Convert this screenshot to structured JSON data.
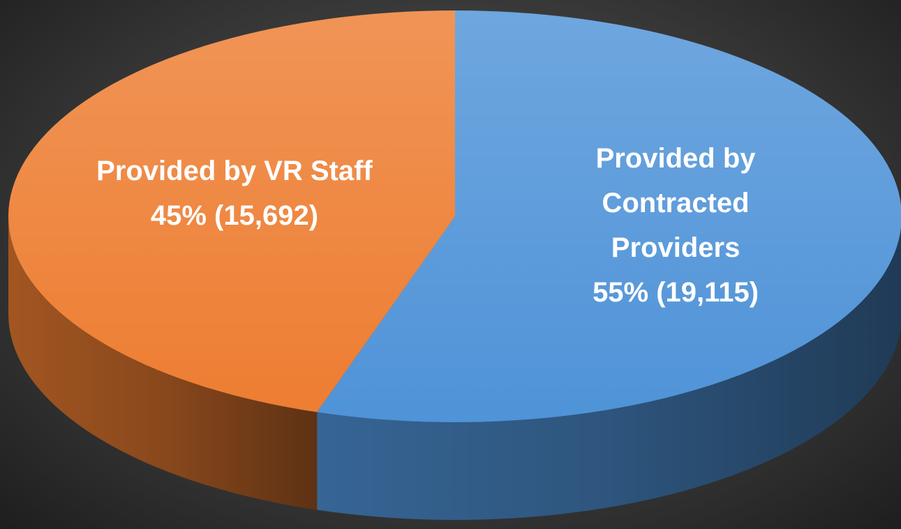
{
  "chart_data": {
    "type": "pie",
    "categories": [
      "Provided by VR Staff",
      "Provided by Contracted Providers"
    ],
    "values": [
      45,
      55
    ],
    "value_labels": [
      "45% (15,692)",
      "55% (19,115)"
    ],
    "colors": [
      "#ed7d31",
      "#4f93d8"
    ]
  }
}
